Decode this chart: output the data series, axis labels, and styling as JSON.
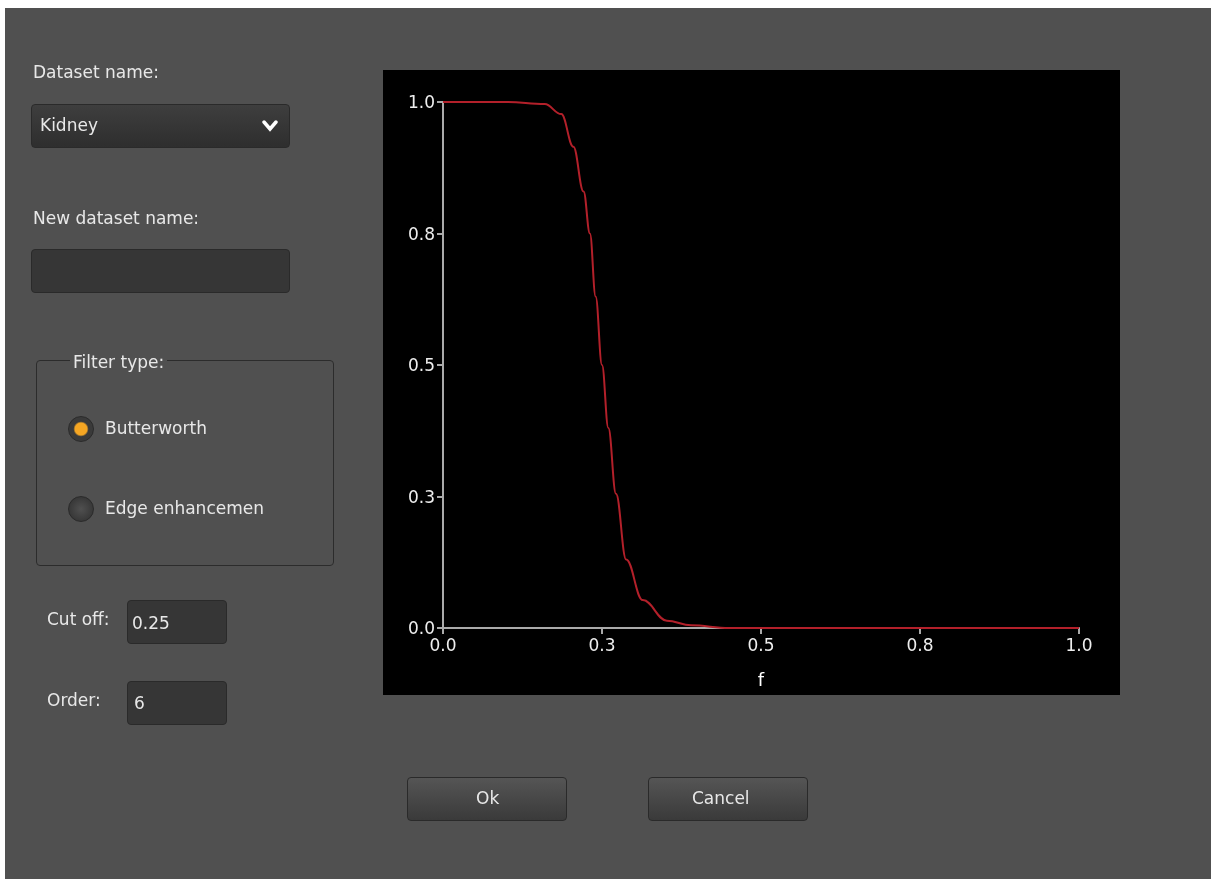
{
  "chart_data": {
    "type": "line",
    "xlabel": "f",
    "x": [
      0,
      0.1,
      0.16,
      0.186,
      0.205,
      0.221,
      0.231,
      0.24,
      0.25,
      0.26,
      0.272,
      0.288,
      0.314,
      0.352,
      0.39,
      0.45,
      0.6,
      0.8,
      1.0
    ],
    "series": [
      {
        "color": "#b3202a",
        "values": [
          1,
          1,
          0.996,
          0.977,
          0.915,
          0.83,
          0.75,
          0.63,
          0.5,
          0.38,
          0.255,
          0.13,
          0.053,
          0.014,
          0.005,
          0,
          0,
          0,
          0
        ]
      }
    ],
    "xlim": [
      0,
      1
    ],
    "ylim": [
      0,
      1
    ],
    "xticks": [
      {
        "value": 0,
        "label": "0.0"
      },
      {
        "value": 0.25,
        "label": "0.3"
      },
      0.5,
      {
        "value": 0.75,
        "label": "0.8"
      },
      {
        "value": 1,
        "label": "1.0"
      }
    ],
    "yticks": [
      {
        "value": 0,
        "label": "0.0"
      },
      {
        "value": 0.25,
        "label": "0.3"
      },
      0.5,
      {
        "value": 0.75,
        "label": "0.8"
      },
      {
        "value": 1,
        "label": "1.0"
      }
    ],
    "grid": false,
    "marker": "none",
    "line_style": "solid",
    "annotations": [
      "Dataset name:",
      "Kidney",
      "New dataset name:",
      "Filter type:",
      "Butterworth",
      "Edge enhancemen",
      "Cut off:",
      "0.25",
      "Order:",
      "6",
      "Ok",
      "Cancel"
    ]
  }
}
